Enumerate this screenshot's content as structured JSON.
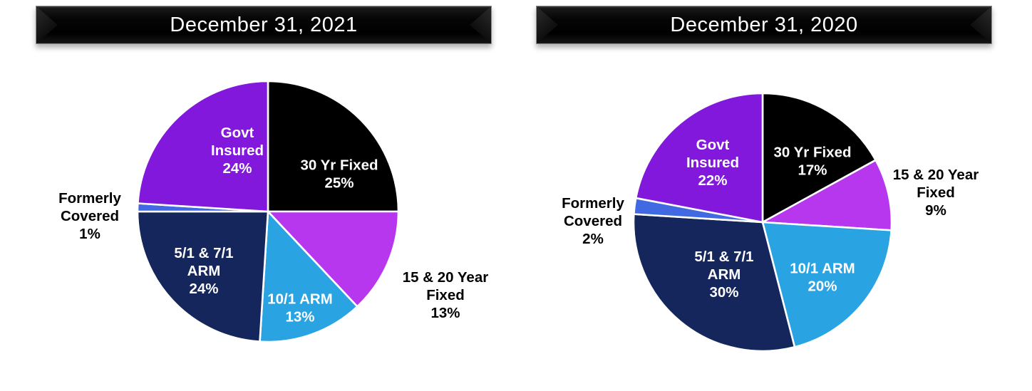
{
  "theme": {
    "page-bg": "#ffffff",
    "titlebar-bg": "#000000",
    "titlebar-text": "#ffffff",
    "slice-stroke": "#ffffff"
  },
  "chart_data": [
    {
      "type": "pie",
      "title": "December 31, 2021",
      "units": "%",
      "start_angle_deg": 0,
      "direction": "clockwise",
      "center": [
        376,
        297
      ],
      "radius": 183,
      "slices": [
        {
          "label": "30 Yr Fixed",
          "value": 25,
          "color": "#000000",
          "text": [
            "30 Yr Fixed",
            "25%"
          ],
          "label_pos": "inside",
          "label_color": "#ffffff",
          "label_xy": [
            476,
            244
          ]
        },
        {
          "label": "15 & 20 Year Fixed",
          "value": 13,
          "color": "#B637EE",
          "text": [
            "15 & 20 Year",
            "Fixed",
            "13%"
          ],
          "label_pos": "outside",
          "label_color": "#000000",
          "label_xy": [
            625,
            414
          ]
        },
        {
          "label": "10/1 ARM",
          "value": 13,
          "color": "#29A3E2",
          "text": [
            "10/1 ARM",
            "13%"
          ],
          "label_pos": "inside",
          "label_color": "#ffffff",
          "label_xy": [
            421,
            432
          ]
        },
        {
          "label": "5/1 & 7/1 ARM",
          "value": 24,
          "color": "#14265B",
          "text": [
            "5/1 & 7/1",
            "ARM",
            "24%"
          ],
          "label_pos": "inside",
          "label_color": "#ffffff",
          "label_xy": [
            286,
            380
          ]
        },
        {
          "label": "Formerly Covered",
          "value": 1,
          "color": "#4169E1",
          "text": [
            "Formerly",
            "Covered",
            "1%"
          ],
          "label_pos": "outside",
          "label_color": "#000000",
          "label_xy": [
            126,
            303
          ]
        },
        {
          "label": "Govt Insured",
          "value": 24,
          "color": "#8118DC",
          "text": [
            "Govt",
            "Insured",
            "24%"
          ],
          "label_pos": "inside",
          "label_color": "#ffffff",
          "label_xy": [
            333,
            211
          ]
        }
      ]
    },
    {
      "type": "pie",
      "title": "December 31, 2020",
      "units": "%",
      "start_angle_deg": 0,
      "direction": "clockwise",
      "center": [
        1070,
        312
      ],
      "radius": 181,
      "slices": [
        {
          "label": "30 Yr Fixed",
          "value": 17,
          "color": "#000000",
          "text": [
            "30 Yr Fixed",
            "17%"
          ],
          "label_pos": "inside",
          "label_color": "#ffffff",
          "label_xy": [
            1140,
            226
          ]
        },
        {
          "label": "15 & 20 Year Fixed",
          "value": 9,
          "color": "#B637EE",
          "text": [
            "15 & 20 Year",
            "Fixed",
            "9%"
          ],
          "label_pos": "outside",
          "label_color": "#000000",
          "label_xy": [
            1313,
            270
          ]
        },
        {
          "label": "10/1 ARM",
          "value": 20,
          "color": "#29A3E2",
          "text": [
            "10/1 ARM",
            "20%"
          ],
          "label_pos": "inside",
          "label_color": "#ffffff",
          "label_xy": [
            1154,
            389
          ]
        },
        {
          "label": "5/1 & 7/1 ARM",
          "value": 30,
          "color": "#14265B",
          "text": [
            "5/1 & 7/1",
            "ARM",
            "30%"
          ],
          "label_pos": "inside",
          "label_color": "#ffffff",
          "label_xy": [
            1016,
            385
          ]
        },
        {
          "label": "Formerly Covered",
          "value": 2,
          "color": "#4169E1",
          "text": [
            "Formerly",
            "Covered",
            "2%"
          ],
          "label_pos": "outside",
          "label_color": "#000000",
          "label_xy": [
            832,
            310
          ]
        },
        {
          "label": "Govt Insured",
          "value": 22,
          "color": "#8118DC",
          "text": [
            "Govt",
            "Insured",
            "22%"
          ],
          "label_pos": "inside",
          "label_color": "#ffffff",
          "label_xy": [
            1000,
            228
          ]
        }
      ]
    }
  ]
}
